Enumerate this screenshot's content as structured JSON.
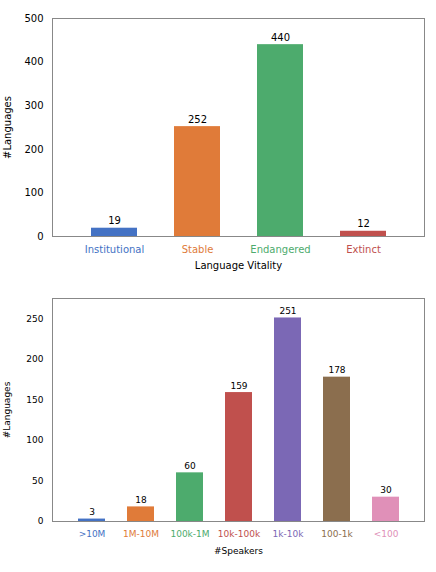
{
  "chart_data": [
    {
      "type": "bar",
      "categories": [
        "Institutional",
        "Stable",
        "Endangered",
        "Extinct"
      ],
      "values": [
        19,
        252,
        440,
        12
      ],
      "colors": [
        "#4472c4",
        "#e07b39",
        "#4dab6d",
        "#c0504d"
      ],
      "xlabel": "Language Vitality",
      "ylabel": "#Languages",
      "ylim": [
        0,
        500
      ],
      "yticks": [
        0,
        100,
        200,
        300,
        400,
        500
      ],
      "data_labels": true
    },
    {
      "type": "bar",
      "categories": [
        ">10M",
        "1M-10M",
        "100k-1M",
        "10k-100k",
        "1k-10k",
        "100-1k",
        "<100"
      ],
      "values": [
        3,
        18,
        60,
        159,
        251,
        178,
        30
      ],
      "colors": [
        "#4472c4",
        "#e07b39",
        "#4dab6d",
        "#c0504d",
        "#7b68b5",
        "#8b6e4e",
        "#e090b8"
      ],
      "xlabel": "#Speakers",
      "ylabel": "#Languages",
      "ylim": [
        0,
        275
      ],
      "yticks": [
        0,
        50,
        100,
        150,
        200,
        250
      ],
      "data_labels": true
    }
  ]
}
